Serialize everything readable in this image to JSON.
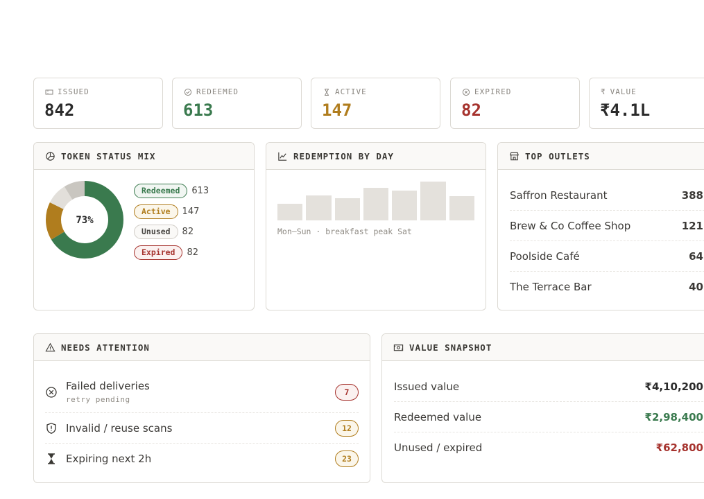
{
  "kpis": {
    "issued": {
      "label": "ISSUED",
      "value": "842",
      "color": "#2b2b2b",
      "icon": "ticket-icon"
    },
    "redeemed": {
      "label": "REDEEMED",
      "value": "613",
      "color": "#3a7a4e",
      "icon": "check-circle-icon"
    },
    "active": {
      "label": "ACTIVE",
      "value": "147",
      "color": "#b07d1e",
      "icon": "hourglass-icon"
    },
    "expired": {
      "label": "EXPIRED",
      "value": "82",
      "color": "#a6332e",
      "icon": "x-circle-icon"
    },
    "value": {
      "label": "VALUE",
      "value": "₹4.1L",
      "color": "#2b2b2b",
      "icon": "rupee-icon"
    }
  },
  "status_mix": {
    "title": "TOKEN STATUS MIX",
    "center_label": "73%",
    "segments": [
      {
        "name": "Redeemed",
        "count": "613",
        "value": 613,
        "color": "#3a7a4e"
      },
      {
        "name": "Active",
        "count": "147",
        "value": 147,
        "color": "#b07d1e"
      },
      {
        "name": "Unused",
        "count": "82",
        "value": 82,
        "color": "#e2dfda"
      },
      {
        "name": "Expired",
        "count": "82",
        "value": 82,
        "color": "#c9c6c0"
      }
    ]
  },
  "redemption": {
    "title": "REDEMPTION BY DAY",
    "caption": "Mon–Sun · breakfast peak Sat",
    "bar_levels": [
      0.42,
      0.64,
      0.58,
      0.84,
      0.76,
      1.0,
      0.62
    ]
  },
  "outlets": {
    "title": "TOP OUTLETS",
    "rows": [
      {
        "name": "Saffron Restaurant",
        "count": "388"
      },
      {
        "name": "Brew & Co Coffee Shop",
        "count": "121"
      },
      {
        "name": "Poolside Café",
        "count": "64"
      },
      {
        "name": "The Terrace Bar",
        "count": "40"
      }
    ]
  },
  "attention": {
    "title": "NEEDS ATTENTION",
    "items": [
      {
        "label": "Failed deliveries",
        "sub": "retry pending",
        "count": "7",
        "color": "#a6332e",
        "icon": "x-circle-icon"
      },
      {
        "label": "Invalid / reuse scans",
        "sub": "",
        "count": "12",
        "color": "#b07d1e",
        "icon": "shield-alert-icon"
      },
      {
        "label": "Expiring next 2h",
        "sub": "",
        "count": "23",
        "color": "#b07d1e",
        "icon": "hourglass-icon"
      }
    ]
  },
  "value_snapshot": {
    "title": "VALUE SNAPSHOT",
    "rows": [
      {
        "label": "Issued value",
        "amount": "₹4,10,200",
        "color": "#2b2b2b"
      },
      {
        "label": "Redeemed value",
        "amount": "₹2,98,400",
        "color": "#3a7a4e"
      },
      {
        "label": "Unused / expired",
        "amount": "₹62,800",
        "color": "#a6332e"
      }
    ]
  }
}
